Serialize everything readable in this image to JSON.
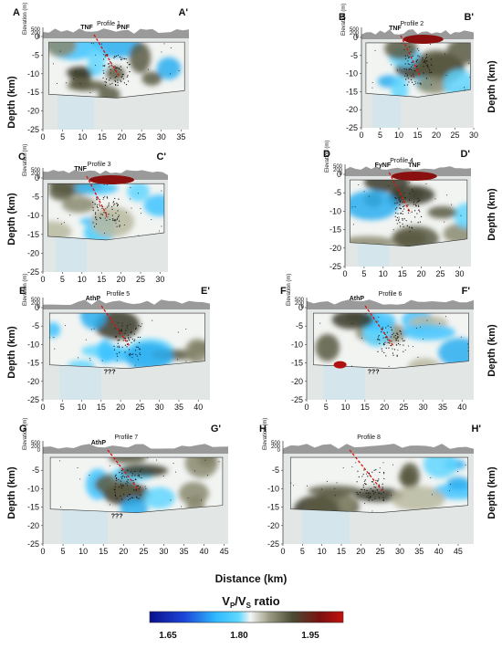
{
  "figure": {
    "xlabel": "Distance (km)",
    "ylabel": "Depth (km)",
    "elevation_label": "Elevation (m)",
    "elev_ticks": [
      "500",
      "200",
      "0"
    ],
    "colorbar": {
      "title_main": "V",
      "title_sub1": "P",
      "title_slash": "/V",
      "title_sub2": "S",
      "title_rest": " ratio",
      "ticks": [
        "1.65",
        "1.80",
        "1.95"
      ],
      "colors": [
        "#0a0f8c",
        "#1c46d8",
        "#2db8ff",
        "#5fd8ff",
        "#f4f6f4",
        "#9a9a82",
        "#4a4a34",
        "#7a1010",
        "#c41010"
      ]
    }
  },
  "panels": [
    {
      "id": "A",
      "left": "A",
      "right": "A'",
      "profile": "Profile 1",
      "xticks": [
        "0",
        "5",
        "10",
        "15",
        "20",
        "25",
        "30",
        "35"
      ],
      "xmax": 37,
      "yticks": [
        "0",
        "-5",
        "-10",
        "-15",
        "-20",
        "-25"
      ],
      "annotations": [
        "TNF",
        "PNF"
      ]
    },
    {
      "id": "B",
      "left": "B",
      "right": "B'",
      "profile": "Profile 2",
      "xticks": [
        "0",
        "5",
        "10",
        "15",
        "20",
        "25",
        "30"
      ],
      "xmax": 30,
      "yticks": [
        "0",
        "-5",
        "-10",
        "-15",
        "-20",
        "-25"
      ],
      "annotations": [
        "TNF"
      ]
    },
    {
      "id": "C",
      "left": "C",
      "right": "C'",
      "profile": "Profile 3",
      "xticks": [
        "0",
        "5",
        "10",
        "15",
        "20",
        "25",
        "30"
      ],
      "xmax": 32,
      "yticks": [
        "0",
        "-5",
        "-10",
        "-15",
        "-20",
        "-25"
      ],
      "annotations": [
        "TNF"
      ]
    },
    {
      "id": "D",
      "left": "D",
      "right": "D'",
      "profile": "Profile 4",
      "xticks": [
        "0",
        "5",
        "10",
        "15",
        "20",
        "25",
        "30"
      ],
      "xmax": 33,
      "yticks": [
        "0",
        "-5",
        "-10",
        "-15",
        "-20",
        "-25"
      ],
      "annotations": [
        "FyNF",
        "TNF"
      ]
    },
    {
      "id": "E",
      "left": "E",
      "right": "E'",
      "profile": "Profile 5",
      "xticks": [
        "0",
        "5",
        "10",
        "15",
        "20",
        "25",
        "30",
        "35",
        "40"
      ],
      "xmax": 43,
      "yticks": [
        "0",
        "-5",
        "-10",
        "-15",
        "-20",
        "-25"
      ],
      "annotations": [
        "AthP",
        "???"
      ]
    },
    {
      "id": "F",
      "left": "F",
      "right": "F'",
      "profile": "Profile 6",
      "xticks": [
        "0",
        "5",
        "10",
        "15",
        "20",
        "25",
        "30",
        "35",
        "40"
      ],
      "xmax": 43,
      "yticks": [
        "0",
        "-5",
        "-10",
        "-15",
        "-20",
        "-25"
      ],
      "annotations": [
        "AthP",
        "???"
      ]
    },
    {
      "id": "G",
      "left": "G",
      "right": "G'",
      "profile": "Profile 7",
      "xticks": [
        "0",
        "5",
        "10",
        "15",
        "20",
        "25",
        "30",
        "35",
        "40",
        "45"
      ],
      "xmax": 46,
      "yticks": [
        "-5",
        "-10",
        "-15",
        "-20",
        "-25"
      ],
      "annotations": [
        "AthP",
        "???"
      ]
    },
    {
      "id": "H",
      "left": "H",
      "right": "H'",
      "profile": "Profile 8",
      "xticks": [
        "0",
        "5",
        "10",
        "15",
        "20",
        "25",
        "30",
        "35",
        "40",
        "45"
      ],
      "xmax": 49,
      "yticks": [
        "-5",
        "-10",
        "-15",
        "-20",
        "-25"
      ],
      "annotations": []
    }
  ]
}
